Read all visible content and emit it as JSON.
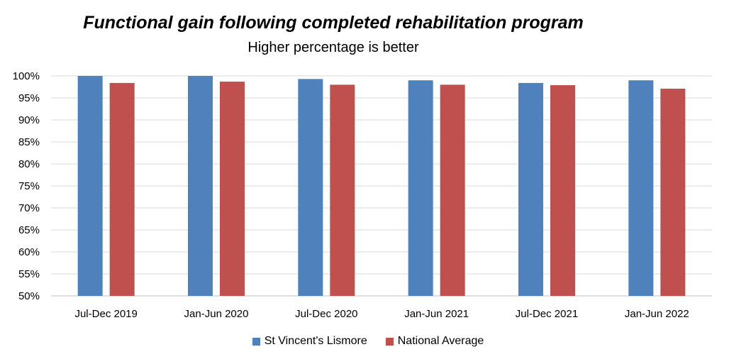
{
  "chart_data": {
    "type": "bar",
    "title": "Functional gain following completed rehabilitation program",
    "subtitle": "Higher percentage is better",
    "categories": [
      "Jul-Dec 2019",
      "Jan-Jun 2020",
      "Jul-Dec 2020",
      "Jan-Jun 2021",
      "Jul-Dec 2021",
      "Jan-Jun 2022"
    ],
    "series": [
      {
        "name": "St Vincent's Lismore",
        "color": "#4F81BD",
        "values": [
          100,
          100,
          99.3,
          99.0,
          98.4,
          99.0
        ]
      },
      {
        "name": "National Average",
        "color": "#C0504D",
        "values": [
          98.4,
          98.7,
          98.0,
          98.0,
          97.9,
          97.1
        ]
      }
    ],
    "ylim": [
      50,
      100
    ],
    "yticks": [
      "50%",
      "55%",
      "60%",
      "65%",
      "70%",
      "75%",
      "80%",
      "85%",
      "90%",
      "95%",
      "100%"
    ],
    "grid": true,
    "legend_position": "bottom"
  }
}
